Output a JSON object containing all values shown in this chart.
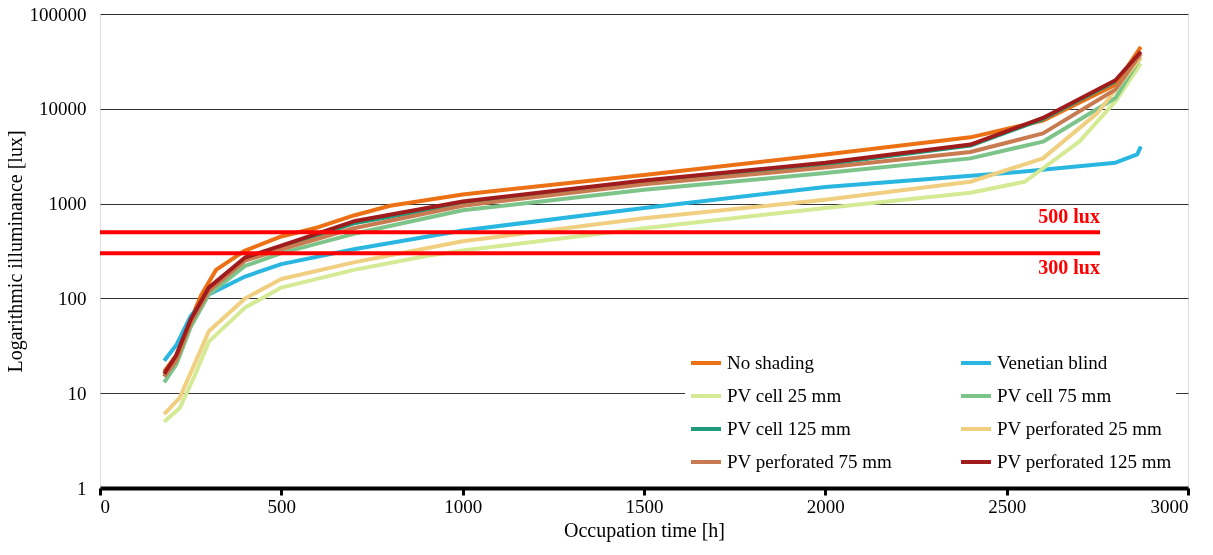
{
  "chart_data": {
    "type": "line",
    "xlabel": "Occupation time [h]",
    "ylabel": "Logarithmic illuminance [lux]",
    "xlim": [
      0,
      3000
    ],
    "xticks": [
      0,
      500,
      1000,
      1500,
      2000,
      2500,
      3000
    ],
    "ylim": [
      1,
      100000
    ],
    "yticks": [
      1,
      10,
      100,
      1000,
      10000,
      100000
    ],
    "log": "y",
    "grid": "y",
    "legend": "bottom right",
    "line_style": "solid",
    "marker": "none",
    "series": [
      {
        "name": "No shading",
        "color": "#ec7014",
        "x": [
          177,
          210,
          250,
          280,
          320,
          400,
          500,
          600,
          700,
          800,
          1000,
          1500,
          2000,
          2400,
          2600,
          2800,
          2870
        ],
        "values": [
          17,
          25,
          60,
          110,
          200,
          320,
          450,
          560,
          750,
          950,
          1250,
          2000,
          3300,
          5000,
          7500,
          18000,
          45000
        ]
      },
      {
        "name": "Venetian blind",
        "color": "#29b6e0",
        "x": [
          177,
          210,
          250,
          300,
          400,
          500,
          700,
          1000,
          1500,
          2000,
          2500,
          2800,
          2860,
          2870
        ],
        "values": [
          22,
          32,
          65,
          110,
          170,
          230,
          330,
          520,
          900,
          1500,
          2100,
          2700,
          3300,
          4000
        ]
      },
      {
        "name": "PV cell 25 mm",
        "color": "#d4ea94",
        "x": [
          177,
          220,
          260,
          300,
          400,
          500,
          700,
          900,
          1000,
          1500,
          2000,
          2400,
          2550,
          2700,
          2800,
          2870
        ],
        "values": [
          5,
          7,
          15,
          35,
          80,
          130,
          200,
          280,
          320,
          550,
          900,
          1300,
          1700,
          4500,
          12000,
          30000
        ]
      },
      {
        "name": "PV cell 75 mm",
        "color": "#7dc48a",
        "x": [
          177,
          210,
          250,
          300,
          400,
          500,
          700,
          1000,
          1500,
          2000,
          2400,
          2600,
          2800,
          2870
        ],
        "values": [
          13,
          20,
          50,
          110,
          220,
          300,
          480,
          850,
          1400,
          2100,
          3000,
          4500,
          13000,
          35000
        ]
      },
      {
        "name": "PV cell 125 mm",
        "color": "#1f9a7a",
        "x": [
          177,
          210,
          250,
          300,
          400,
          500,
          700,
          1000,
          1500,
          2000,
          2400,
          2600,
          2800
        ],
        "values": [
          15,
          24,
          58,
          125,
          260,
          350,
          620,
          1000,
          1650,
          2600,
          4100,
          7800,
          19500
        ]
      },
      {
        "name": "PV perforated 25 mm",
        "color": "#f0d080",
        "x": [
          177,
          220,
          260,
          300,
          400,
          500,
          700,
          1000,
          1500,
          2000,
          2400,
          2600,
          2750,
          2870
        ],
        "values": [
          6,
          9,
          20,
          45,
          100,
          160,
          240,
          400,
          700,
          1100,
          1700,
          3000,
          9000,
          35000
        ]
      },
      {
        "name": "PV perforated 75 mm",
        "color": "#c87b50",
        "x": [
          177,
          210,
          250,
          300,
          400,
          500,
          700,
          1000,
          1500,
          2000,
          2400,
          2600,
          2800,
          2870
        ],
        "values": [
          15,
          22,
          55,
          120,
          250,
          330,
          550,
          950,
          1600,
          2400,
          3500,
          5500,
          16000,
          38000
        ]
      },
      {
        "name": "PV perforated 125 mm",
        "color": "#a01c1c",
        "x": [
          177,
          210,
          250,
          300,
          400,
          500,
          700,
          1000,
          1500,
          2000,
          2400,
          2600,
          2800,
          2870
        ],
        "values": [
          16,
          25,
          60,
          130,
          270,
          360,
          650,
          1050,
          1750,
          2700,
          4200,
          8000,
          20000,
          40000
        ]
      }
    ],
    "ref_lines": [
      {
        "axis": "y",
        "value": 500,
        "label": "500 lux",
        "color": "#ff0000"
      },
      {
        "axis": "y",
        "value": 300,
        "label": "300 lux",
        "color": "#ff0000"
      }
    ]
  }
}
